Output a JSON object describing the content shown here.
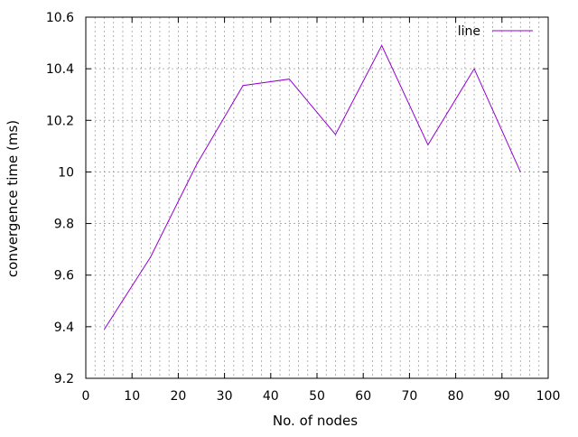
{
  "chart_data": {
    "type": "line",
    "title": "",
    "xlabel": "No. of nodes",
    "ylabel": "convergence time (ms)",
    "xlim": [
      0,
      100
    ],
    "ylim": [
      9.2,
      10.6
    ],
    "x_ticks": [
      0,
      10,
      20,
      30,
      40,
      50,
      60,
      70,
      80,
      90,
      100
    ],
    "x_tick_labels": [
      "0",
      "10",
      "20",
      "30",
      "40",
      "50",
      "60",
      "70",
      "80",
      "90",
      "100"
    ],
    "y_ticks": [
      9.2,
      9.4,
      9.6,
      9.8,
      10.0,
      10.2,
      10.4,
      10.6
    ],
    "y_tick_labels": [
      "9.2",
      "9.4",
      "9.6",
      "9.8",
      "10",
      "10.2",
      "10.4",
      "10.6"
    ],
    "x_minor_step": 2,
    "grid": true,
    "legend": {
      "position": "top-right"
    },
    "series": [
      {
        "name": "line",
        "color": "#9400d3",
        "x": [
          4,
          14,
          24,
          34,
          44,
          54,
          64,
          74,
          84,
          94
        ],
        "y": [
          9.39,
          9.67,
          10.03,
          10.335,
          10.36,
          10.145,
          10.49,
          10.105,
          10.4,
          10.0
        ]
      }
    ]
  }
}
